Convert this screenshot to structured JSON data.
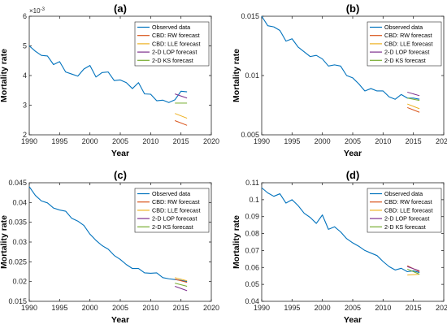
{
  "colors": {
    "observed": "#0072BD",
    "cbd_rw": "#D95319",
    "cbd_lle": "#EDB120",
    "lop_2d": "#7E2F8E",
    "ks_2d": "#77AC30"
  },
  "legend_labels": [
    "Observed data",
    "CBD: RW forecast",
    "CBD: LLE forecast",
    "2-D LOP forecast",
    "2-D KS forecast"
  ],
  "chart_data": [
    {
      "type": "line",
      "title": "(a)",
      "xlabel": "Year",
      "ylabel": "Mortality rate",
      "xlim": [
        1990,
        2020
      ],
      "ylim": [
        0.002,
        0.006
      ],
      "x_ticks": [
        "1990",
        "1995",
        "2000",
        "2005",
        "2010",
        "2015",
        "2020"
      ],
      "y_ticks": [
        {
          "value": 0.002,
          "label": "2"
        },
        {
          "value": 0.003,
          "label": "3"
        },
        {
          "value": 0.004,
          "label": "4"
        },
        {
          "value": 0.005,
          "label": "5"
        },
        {
          "value": 0.006,
          "label": "6"
        }
      ],
      "y_exponent": "×10",
      "y_exponent_power": "-3",
      "legend_position": "top-right",
      "series": [
        {
          "name": "Observed data",
          "color_key": "observed",
          "x": [
            1990,
            1991,
            1992,
            1993,
            1994,
            1995,
            1996,
            1997,
            1998,
            1999,
            2000,
            2001,
            2002,
            2003,
            2004,
            2005,
            2006,
            2007,
            2008,
            2009,
            2010,
            2011,
            2012,
            2013,
            2014,
            2015,
            2016
          ],
          "y": [
            0.005,
            0.00482,
            0.00468,
            0.00466,
            0.00437,
            0.00447,
            0.00412,
            0.00405,
            0.00398,
            0.00422,
            0.00434,
            0.00395,
            0.0041,
            0.00412,
            0.00383,
            0.00385,
            0.00376,
            0.00356,
            0.00376,
            0.00338,
            0.00337,
            0.00315,
            0.00317,
            0.00309,
            0.00318,
            0.00347,
            0.00345
          ]
        },
        {
          "name": "CBD: RW forecast",
          "color_key": "cbd_rw",
          "x": [
            2014,
            2016
          ],
          "y": [
            0.00248,
            0.00232
          ]
        },
        {
          "name": "CBD: LLE forecast",
          "color_key": "cbd_lle",
          "x": [
            2014,
            2016
          ],
          "y": [
            0.00272,
            0.00256
          ]
        },
        {
          "name": "2-D LOP forecast",
          "color_key": "lop_2d",
          "x": [
            2014,
            2016
          ],
          "y": [
            0.00338,
            0.00324
          ]
        },
        {
          "name": "2-D KS forecast",
          "color_key": "ks_2d",
          "x": [
            2014,
            2016
          ],
          "y": [
            0.00307,
            0.00307
          ]
        }
      ]
    },
    {
      "type": "line",
      "title": "(b)",
      "xlabel": "Year",
      "ylabel": "Mortality rate",
      "xlim": [
        1990,
        2020
      ],
      "ylim": [
        0.005,
        0.015
      ],
      "x_ticks": [
        "1990",
        "1995",
        "2000",
        "2005",
        "2010",
        "2015",
        "2020"
      ],
      "y_ticks": [
        {
          "value": 0.005,
          "label": "0.005"
        },
        {
          "value": 0.01,
          "label": "0.01"
        },
        {
          "value": 0.015,
          "label": "0.015"
        }
      ],
      "legend_position": "top-right",
      "series": [
        {
          "name": "Observed data",
          "color_key": "observed",
          "x": [
            1990,
            1991,
            1992,
            1993,
            1994,
            1995,
            1996,
            1997,
            1998,
            1999,
            2000,
            2001,
            2002,
            2003,
            2004,
            2005,
            2006,
            2007,
            2008,
            2009,
            2010,
            2011,
            2012,
            2013,
            2014,
            2015,
            2016
          ],
          "y": [
            0.015,
            0.0142,
            0.0141,
            0.0138,
            0.0129,
            0.0131,
            0.0124,
            0.012,
            0.0116,
            0.0117,
            0.0114,
            0.0108,
            0.0109,
            0.0108,
            0.01,
            0.0098,
            0.0093,
            0.0087,
            0.0089,
            0.0087,
            0.0087,
            0.0082,
            0.008,
            0.0084,
            0.0081,
            0.0081,
            0.008
          ]
        },
        {
          "name": "CBD: RW forecast",
          "color_key": "cbd_rw",
          "x": [
            2014,
            2016
          ],
          "y": [
            0.0073,
            0.0069
          ]
        },
        {
          "name": "CBD: LLE forecast",
          "color_key": "cbd_lle",
          "x": [
            2014,
            2016
          ],
          "y": [
            0.0076,
            0.0072
          ]
        },
        {
          "name": "2-D LOP forecast",
          "color_key": "lop_2d",
          "x": [
            2014,
            2016
          ],
          "y": [
            0.0086,
            0.0083
          ]
        },
        {
          "name": "2-D KS forecast",
          "color_key": "ks_2d",
          "x": [
            2014,
            2016
          ],
          "y": [
            0.0081,
            0.0079
          ]
        }
      ]
    },
    {
      "type": "line",
      "title": "(c)",
      "xlabel": "Year",
      "ylabel": "Mortality rate",
      "xlim": [
        1990,
        2020
      ],
      "ylim": [
        0.015,
        0.045
      ],
      "x_ticks": [
        "1990",
        "1995",
        "2000",
        "2005",
        "2010",
        "2015",
        "2020"
      ],
      "y_ticks": [
        {
          "value": 0.015,
          "label": "0.015"
        },
        {
          "value": 0.02,
          "label": "0.02"
        },
        {
          "value": 0.025,
          "label": "0.025"
        },
        {
          "value": 0.03,
          "label": "0.03"
        },
        {
          "value": 0.035,
          "label": "0.035"
        },
        {
          "value": 0.04,
          "label": "0.04"
        },
        {
          "value": 0.045,
          "label": "0.045"
        }
      ],
      "legend_position": "top-right",
      "series": [
        {
          "name": "Observed data",
          "color_key": "observed",
          "x": [
            1990,
            1991,
            1992,
            1993,
            1994,
            1995,
            1996,
            1997,
            1998,
            1999,
            2000,
            2001,
            2002,
            2003,
            2004,
            2005,
            2006,
            2007,
            2008,
            2009,
            2010,
            2011,
            2012,
            2013,
            2014,
            2015,
            2016
          ],
          "y": [
            0.044,
            0.0418,
            0.0404,
            0.0399,
            0.0386,
            0.0381,
            0.0378,
            0.036,
            0.0353,
            0.0342,
            0.032,
            0.0304,
            0.0291,
            0.0282,
            0.0266,
            0.0256,
            0.0243,
            0.0233,
            0.0233,
            0.0222,
            0.0221,
            0.0222,
            0.021,
            0.0207,
            0.0205,
            0.0203,
            0.02
          ]
        },
        {
          "name": "CBD: RW forecast",
          "color_key": "cbd_rw",
          "x": [
            2014,
            2016
          ],
          "y": [
            0.0206,
            0.0198
          ]
        },
        {
          "name": "CBD: LLE forecast",
          "color_key": "cbd_lle",
          "x": [
            2014,
            2016
          ],
          "y": [
            0.021,
            0.0202
          ]
        },
        {
          "name": "2-D LOP forecast",
          "color_key": "lop_2d",
          "x": [
            2014,
            2016
          ],
          "y": [
            0.0188,
            0.0177
          ]
        },
        {
          "name": "2-D KS forecast",
          "color_key": "ks_2d",
          "x": [
            2014,
            2016
          ],
          "y": [
            0.0196,
            0.0188
          ]
        }
      ]
    },
    {
      "type": "line",
      "title": "(d)",
      "xlabel": "Year",
      "ylabel": "Mortality rate",
      "xlim": [
        1990,
        2020
      ],
      "ylim": [
        0.04,
        0.11
      ],
      "x_ticks": [
        "1990",
        "1995",
        "2000",
        "2005",
        "2010",
        "2015",
        "2020"
      ],
      "y_ticks": [
        {
          "value": 0.04,
          "label": "0.04"
        },
        {
          "value": 0.05,
          "label": "0.05"
        },
        {
          "value": 0.06,
          "label": "0.06"
        },
        {
          "value": 0.07,
          "label": "0.07"
        },
        {
          "value": 0.08,
          "label": "0.08"
        },
        {
          "value": 0.09,
          "label": "0.09"
        },
        {
          "value": 0.1,
          "label": "0.1"
        },
        {
          "value": 0.11,
          "label": "0.11"
        }
      ],
      "legend_position": "top-right",
      "series": [
        {
          "name": "Observed data",
          "color_key": "observed",
          "x": [
            1990,
            1991,
            1992,
            1993,
            1994,
            1995,
            1996,
            1997,
            1998,
            1999,
            2000,
            2001,
            2002,
            2003,
            2004,
            2005,
            2006,
            2007,
            2008,
            2009,
            2010,
            2011,
            2012,
            2013,
            2014,
            2015,
            2016
          ],
          "y": [
            0.107,
            0.104,
            0.102,
            0.1035,
            0.098,
            0.1,
            0.0965,
            0.092,
            0.0895,
            0.086,
            0.091,
            0.0825,
            0.084,
            0.081,
            0.077,
            0.0745,
            0.0725,
            0.07,
            0.0685,
            0.067,
            0.0635,
            0.0605,
            0.0585,
            0.0595,
            0.0575,
            0.058,
            0.057
          ]
        },
        {
          "name": "CBD: RW forecast",
          "color_key": "cbd_rw",
          "x": [
            2014,
            2016
          ],
          "y": [
            0.061,
            0.0575
          ]
        },
        {
          "name": "CBD: LLE forecast",
          "color_key": "cbd_lle",
          "x": [
            2014,
            2016
          ],
          "y": [
            0.0555,
            0.056
          ]
        },
        {
          "name": "2-D LOP forecast",
          "color_key": "lop_2d",
          "x": [
            2014,
            2016
          ],
          "y": [
            0.0605,
            0.058
          ]
        },
        {
          "name": "2-D KS forecast",
          "color_key": "ks_2d",
          "x": [
            2014,
            2016
          ],
          "y": [
            0.059,
            0.056
          ]
        }
      ]
    }
  ]
}
